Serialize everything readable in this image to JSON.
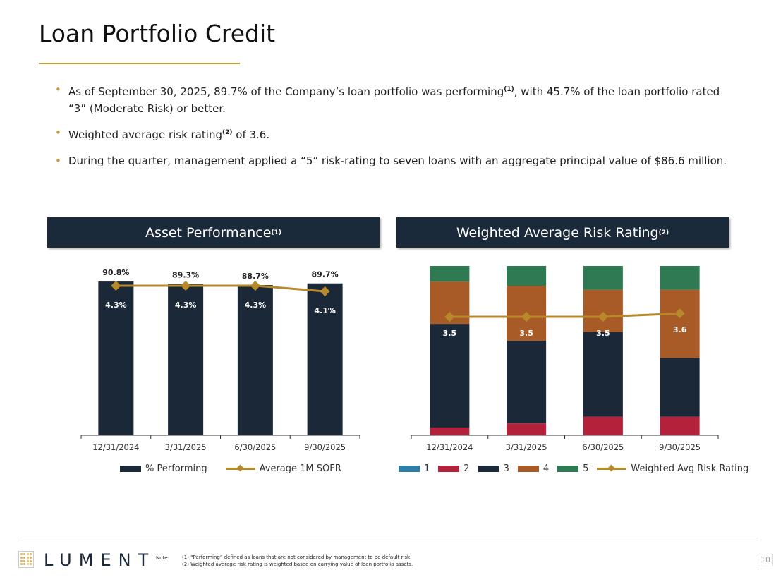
{
  "title": "Loan Portfolio Credit",
  "bullets": [
    {
      "pre": "As of September 30, 2025, 89.7% of the Company’s loan portfolio was performing",
      "sup": "(1)",
      "post": ", with 45.7% of the loan portfolio rated “3” (Moderate Risk) or better."
    },
    {
      "pre": "Weighted average risk rating",
      "sup": "(2)",
      "post": " of 3.6."
    },
    {
      "pre": "During the quarter, management applied a “5” risk-rating to seven loans with an aggregate principal value of $86.6 million.",
      "sup": "",
      "post": ""
    }
  ],
  "colors": {
    "navy": "#1b2a3a",
    "gold": "#b8892a",
    "r1": "#2e7ea6",
    "r2": "#b3213a",
    "r3": "#1a2838",
    "r4": "#a85b27",
    "r5": "#2f7a52"
  },
  "chart_data": [
    {
      "type": "bar",
      "title": "Asset Performance",
      "title_sup": "(1)",
      "categories": [
        "12/31/2024",
        "3/31/2025",
        "6/30/2025",
        "9/30/2025"
      ],
      "ylim": [
        0,
        100
      ],
      "y2lim": [
        -1,
        5
      ],
      "grid": false,
      "legend": "bottom",
      "series": [
        {
          "name": "% Performing",
          "type": "bar",
          "values": [
            90.8,
            89.3,
            88.7,
            89.7
          ],
          "labels": [
            "90.8%",
            "89.3%",
            "88.7%",
            "89.7%"
          ]
        },
        {
          "name": "Average 1M SOFR",
          "type": "line",
          "axis": "secondary",
          "values": [
            4.3,
            4.3,
            4.3,
            4.1
          ],
          "labels": [
            "4.3%",
            "4.3%",
            "4.3%",
            "4.1%"
          ]
        }
      ]
    },
    {
      "type": "bar",
      "stacked": true,
      "title": "Weighted Average Risk Rating",
      "title_sup": "(2)",
      "categories": [
        "12/31/2024",
        "3/31/2025",
        "6/30/2025",
        "9/30/2025"
      ],
      "ylim": [
        0,
        100
      ],
      "y2lim": [
        0,
        5
      ],
      "grid": false,
      "legend": "bottom",
      "series": [
        {
          "name": "1",
          "type": "bar",
          "values": [
            0,
            0,
            0,
            0
          ]
        },
        {
          "name": "2",
          "type": "bar",
          "values": [
            4.6,
            7.0,
            11.0,
            11.0
          ]
        },
        {
          "name": "3",
          "type": "bar",
          "values": [
            61.2,
            48.8,
            50.0,
            34.7
          ]
        },
        {
          "name": "4",
          "type": "bar",
          "values": [
            25.0,
            32.5,
            25.0,
            40.3
          ]
        },
        {
          "name": "5",
          "type": "bar",
          "values": [
            9.2,
            11.7,
            14.0,
            14.0
          ]
        },
        {
          "name": "Weighted Avg Risk Rating",
          "type": "line",
          "axis": "secondary",
          "values": [
            3.5,
            3.5,
            3.5,
            3.6
          ],
          "labels": [
            "3.5",
            "3.5",
            "3.5",
            "3.6"
          ]
        }
      ]
    }
  ],
  "footer": {
    "logo": "LUMENT",
    "note_label": "Note:",
    "notes": [
      "(1) “Performing” defined as loans that are not considered by management to be default risk.",
      "(2) Weighted average risk rating is weighted based on carrying value of loan portfolio assets."
    ],
    "page": "10"
  }
}
